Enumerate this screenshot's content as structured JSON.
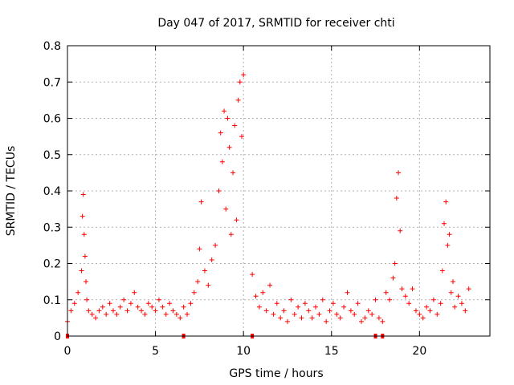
{
  "chart_data": {
    "type": "scatter",
    "title": "Day 047 of 2017, SRMTID for receiver chti",
    "xlabel": "GPS time / hours",
    "ylabel": "SRMTID / TECUs",
    "xlim": [
      0,
      24
    ],
    "ylim": [
      0,
      0.8
    ],
    "xticks": [
      "0",
      "5",
      "10",
      "15",
      "20"
    ],
    "xtick_values": [
      0,
      5,
      10,
      15,
      20
    ],
    "yticks": [
      "0",
      "0.1",
      "0.2",
      "0.3",
      "0.4",
      "0.5",
      "0.6",
      "0.7",
      "0.8"
    ],
    "ytick_values": [
      0,
      0.1,
      0.2,
      0.3,
      0.4,
      0.5,
      0.6,
      0.7,
      0.8
    ],
    "grid": true,
    "marker": "+",
    "color": "#ff0000",
    "series": [
      {
        "name": "SRMTID",
        "x": [
          0.0,
          0.2,
          0.4,
          0.6,
          0.8,
          0.85,
          0.9,
          0.95,
          1.0,
          1.05,
          1.1,
          1.2,
          1.4,
          1.6,
          1.8,
          2.0,
          2.2,
          2.4,
          2.6,
          2.8,
          3.0,
          3.2,
          3.4,
          3.6,
          3.8,
          4.0,
          4.2,
          4.4,
          4.6,
          4.8,
          5.0,
          5.2,
          5.4,
          5.6,
          5.8,
          6.0,
          6.2,
          6.4,
          6.6,
          6.8,
          7.0,
          7.2,
          7.4,
          7.5,
          7.6,
          7.8,
          8.0,
          8.2,
          8.4,
          8.6,
          8.7,
          8.8,
          8.9,
          9.0,
          9.1,
          9.2,
          9.3,
          9.4,
          9.5,
          9.6,
          9.7,
          9.8,
          9.9,
          10.0,
          10.5,
          10.7,
          10.9,
          11.1,
          11.3,
          11.5,
          11.7,
          11.9,
          12.1,
          12.3,
          12.5,
          12.7,
          12.9,
          13.1,
          13.3,
          13.5,
          13.7,
          13.9,
          14.1,
          14.3,
          14.5,
          14.7,
          14.9,
          15.1,
          15.3,
          15.5,
          15.7,
          15.9,
          16.1,
          16.3,
          16.5,
          16.7,
          16.9,
          17.1,
          17.3,
          17.5,
          17.7,
          17.9,
          18.1,
          18.3,
          18.5,
          18.6,
          18.7,
          18.8,
          18.9,
          19.0,
          19.2,
          19.4,
          19.6,
          19.8,
          20.0,
          20.2,
          20.4,
          20.6,
          20.8,
          21.0,
          21.2,
          21.3,
          21.4,
          21.5,
          21.6,
          21.7,
          21.8,
          21.9,
          22.0,
          22.2,
          22.4,
          22.6,
          22.8
        ],
        "y": [
          0.04,
          0.07,
          0.09,
          0.12,
          0.18,
          0.33,
          0.39,
          0.28,
          0.22,
          0.15,
          0.1,
          0.07,
          0.06,
          0.05,
          0.07,
          0.08,
          0.06,
          0.09,
          0.07,
          0.06,
          0.08,
          0.1,
          0.07,
          0.09,
          0.12,
          0.08,
          0.07,
          0.06,
          0.09,
          0.08,
          0.07,
          0.1,
          0.08,
          0.06,
          0.09,
          0.07,
          0.06,
          0.05,
          0.08,
          0.06,
          0.09,
          0.12,
          0.15,
          0.24,
          0.37,
          0.18,
          0.14,
          0.21,
          0.25,
          0.4,
          0.56,
          0.48,
          0.62,
          0.35,
          0.6,
          0.52,
          0.28,
          0.45,
          0.58,
          0.32,
          0.65,
          0.7,
          0.55,
          0.72,
          0.17,
          0.11,
          0.08,
          0.12,
          0.07,
          0.14,
          0.06,
          0.09,
          0.05,
          0.07,
          0.04,
          0.1,
          0.06,
          0.08,
          0.05,
          0.09,
          0.07,
          0.05,
          0.08,
          0.06,
          0.1,
          0.04,
          0.07,
          0.09,
          0.06,
          0.05,
          0.08,
          0.12,
          0.07,
          0.06,
          0.09,
          0.04,
          0.05,
          0.07,
          0.06,
          0.1,
          0.05,
          0.04,
          0.12,
          0.1,
          0.16,
          0.2,
          0.38,
          0.45,
          0.29,
          0.13,
          0.11,
          0.09,
          0.13,
          0.07,
          0.06,
          0.05,
          0.08,
          0.07,
          0.1,
          0.06,
          0.09,
          0.18,
          0.31,
          0.37,
          0.25,
          0.28,
          0.12,
          0.15,
          0.08,
          0.11,
          0.09,
          0.07,
          0.13
        ]
      }
    ],
    "axis_markers_x": [
      0.0,
      6.6,
      10.5,
      17.5,
      17.9
    ]
  }
}
